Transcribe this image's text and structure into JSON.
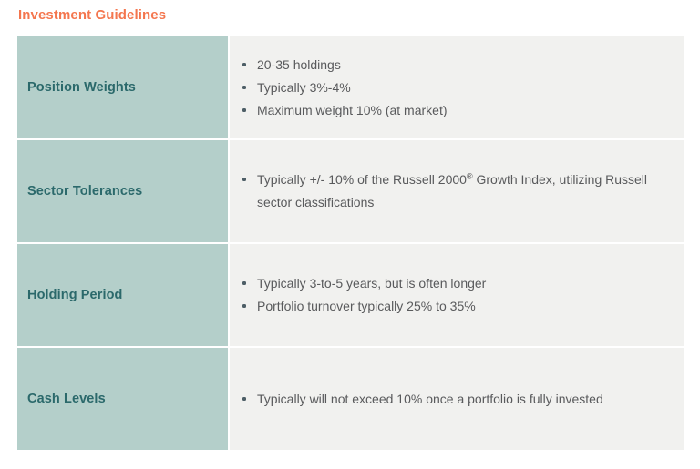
{
  "page": {
    "title": "Investment Guidelines"
  },
  "colors": {
    "title": "#F4764E",
    "label_bg": "#B4CFCA",
    "label_text": "#2B696B",
    "body_bg": "#F1F1EF",
    "body_text": "#595A5C",
    "separator": "#FBFBFA",
    "bullet": "#4D5E66"
  },
  "table": {
    "rows": [
      {
        "label": "Position Weights",
        "bullets": [
          "20-35 holdings",
          "Typically 3%-4%",
          "Maximum weight 10% (at market)"
        ]
      },
      {
        "label": "Sector Tolerances",
        "bullets": [
          "Typically +/- 10% of the Russell 2000® Growth Index, utilizing Russell sector classifications"
        ]
      },
      {
        "label": "Holding Period",
        "bullets": [
          "Typically 3-to-5 years, but is often longer",
          "Portfolio turnover typically 25% to 35%"
        ]
      },
      {
        "label": "Cash Levels",
        "bullets": [
          "Typically will not exceed 10% once a portfolio is fully invested"
        ]
      }
    ]
  }
}
